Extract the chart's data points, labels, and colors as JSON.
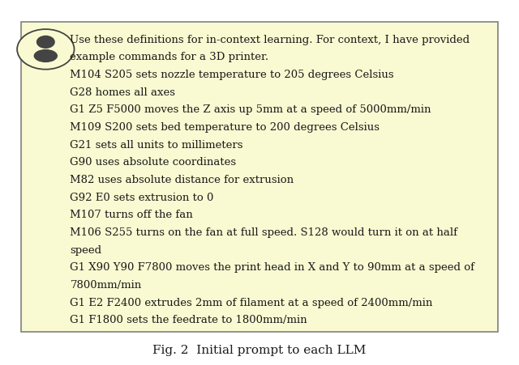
{
  "title": "Fig. 2  Initial prompt to each LLM",
  "box_bg_color": "#FAFAD2",
  "box_border_color": "#808080",
  "text_color": "#1a1a1a",
  "background_color": "#ffffff",
  "font_size": 9.5,
  "title_font_size": 11,
  "lines": [
    "Use these definitions for in-context learning. For context, I have provided",
    "example commands for a 3D printer.",
    "M104 S205 sets nozzle temperature to 205 degrees Celsius",
    "G28 homes all axes",
    "G1 Z5 F5000 moves the Z axis up 5mm at a speed of 5000mm/min",
    "M109 S200 sets bed temperature to 200 degrees Celsius",
    "G21 sets all units to millimeters",
    "G90 uses absolute coordinates",
    "M82 uses absolute distance for extrusion",
    "G92 E0 sets extrusion to 0",
    "M107 turns off the fan",
    "M106 S255 turns on the fan at full speed. S128 would turn it on at half",
    "speed",
    "G1 X90 Y90 F7800 moves the print head in X and Y to 90mm at a speed of",
    "7800mm/min",
    "G1 E2 F2400 extrudes 2mm of filament at a speed of 2400mm/min",
    "G1 F1800 sets the feedrate to 1800mm/min"
  ]
}
